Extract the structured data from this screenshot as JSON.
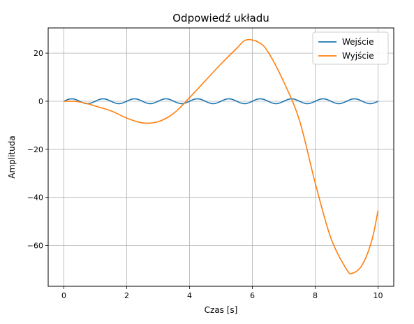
{
  "chart_data": {
    "type": "line",
    "title": "Odpowiedź układu",
    "xlabel": "Czas [s]",
    "ylabel": "Amplituda",
    "xlim": [
      -0.5,
      10.5
    ],
    "ylim": [
      -77,
      30.5
    ],
    "xticks": [
      0,
      2,
      4,
      6,
      8,
      10
    ],
    "yticks": [
      20,
      0,
      -20,
      -40,
      -60
    ],
    "xtick_labels": [
      "0",
      "2",
      "4",
      "6",
      "8",
      "10"
    ],
    "ytick_labels": [
      "20",
      "0",
      "−20",
      "−40",
      "−60"
    ],
    "grid": true,
    "legend_position": "top-right",
    "series": [
      {
        "name": "Wejście",
        "color": "#1f77b4",
        "function": "sine",
        "amplitude": 1,
        "frequency_hz": 1,
        "x_range": [
          0,
          10
        ]
      },
      {
        "name": "Wyjście",
        "color": "#ff7f0e",
        "points": [
          [
            0,
            0
          ],
          [
            0.3,
            0
          ],
          [
            0.5,
            -0.3
          ],
          [
            0.8,
            -1.2
          ],
          [
            1.0,
            -2
          ],
          [
            1.5,
            -4
          ],
          [
            2.0,
            -7
          ],
          [
            2.5,
            -9
          ],
          [
            3.0,
            -8.5
          ],
          [
            3.5,
            -5
          ],
          [
            4.0,
            1.5
          ],
          [
            4.5,
            8.5
          ],
          [
            5.0,
            15.5
          ],
          [
            5.5,
            22
          ],
          [
            5.8,
            25.5
          ],
          [
            6.2,
            24.5
          ],
          [
            6.5,
            20.5
          ],
          [
            7.0,
            8
          ],
          [
            7.5,
            -8
          ],
          [
            8.0,
            -34
          ],
          [
            8.5,
            -57
          ],
          [
            9.0,
            -70
          ],
          [
            9.2,
            -71.5
          ],
          [
            9.5,
            -68
          ],
          [
            9.8,
            -58
          ],
          [
            10.0,
            -45.5
          ]
        ]
      }
    ]
  }
}
